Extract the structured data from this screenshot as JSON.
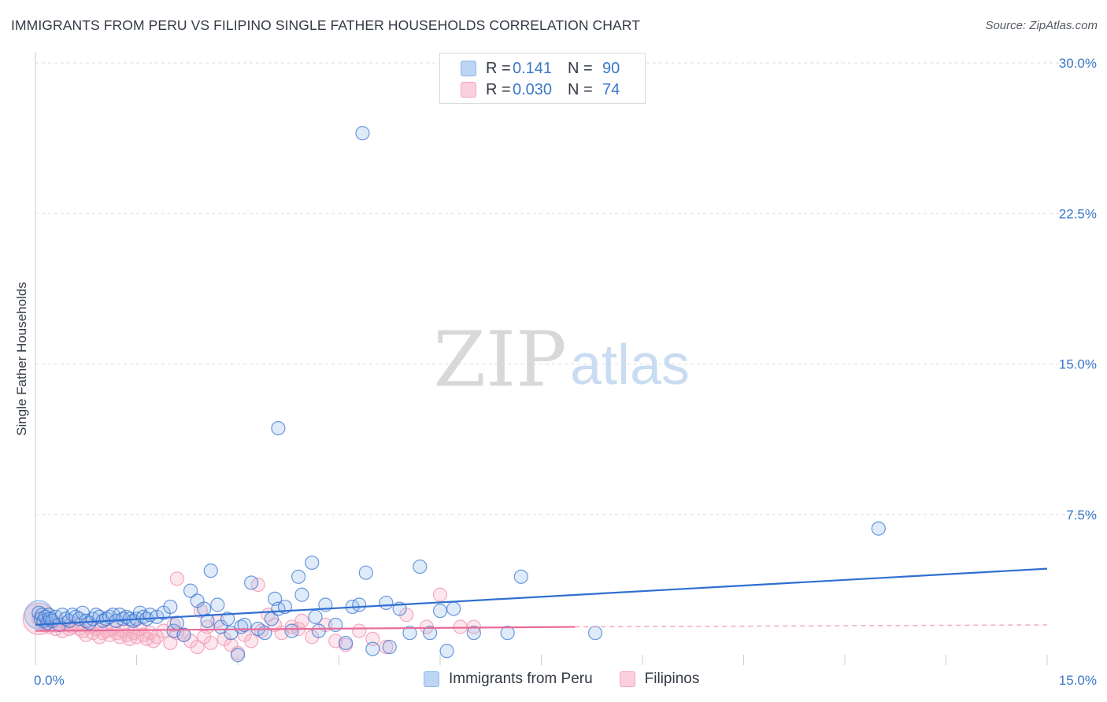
{
  "header": {
    "title": "IMMIGRANTS FROM PERU VS FILIPINO SINGLE FATHER HOUSEHOLDS CORRELATION CHART",
    "source": "Source: ZipAtlas.com"
  },
  "watermark": {
    "zip": "ZIP",
    "atlas": "atlas"
  },
  "colors": {
    "peru": "#8fb8ea",
    "peru_line": "#2f6fd0",
    "filipinos": "#f4a8c0",
    "filipinos_line": "#e86a98",
    "tick_text": "#3a78c8",
    "grid": "#dddddd"
  },
  "legend_top": {
    "rows": [
      {
        "r_label": "R =",
        "r_value": "0.141",
        "n_label": "N =",
        "n_value": "90"
      },
      {
        "r_label": "R =",
        "r_value": "0.030",
        "n_label": "N =",
        "n_value": "74"
      }
    ]
  },
  "legend_bottom": {
    "items": [
      {
        "label": "Immigrants from Peru"
      },
      {
        "label": "Filipinos"
      }
    ]
  },
  "chart_data": {
    "type": "scatter",
    "title": "IMMIGRANTS FROM PERU VS FILIPINO SINGLE FATHER HOUSEHOLDS CORRELATION CHART",
    "xlabel": "",
    "ylabel": "Single Father Households",
    "xlim": [
      0,
      15
    ],
    "ylim": [
      0,
      30
    ],
    "x_ticks": [
      0,
      15
    ],
    "x_tick_labels": [
      "0.0%",
      "15.0%"
    ],
    "y_ticks": [
      7.5,
      15,
      22.5,
      30
    ],
    "y_tick_labels": [
      "7.5%",
      "15.0%",
      "22.5%",
      "30.0%"
    ],
    "grid": true,
    "legend_position": "top-center",
    "series": [
      {
        "name": "Immigrants from Peru",
        "r": 0.141,
        "n": 90,
        "trend": {
          "x": [
            0,
            15
          ],
          "y": [
            2.0,
            4.8
          ]
        },
        "points": [
          [
            0.05,
            2.6
          ],
          [
            0.08,
            2.3
          ],
          [
            0.1,
            2.5
          ],
          [
            0.12,
            2.2
          ],
          [
            0.15,
            2.4
          ],
          [
            0.18,
            2.1
          ],
          [
            0.2,
            2.5
          ],
          [
            0.22,
            2.3
          ],
          [
            0.25,
            2.2
          ],
          [
            0.3,
            2.4
          ],
          [
            0.35,
            2.0
          ],
          [
            0.4,
            2.5
          ],
          [
            0.45,
            2.3
          ],
          [
            0.5,
            2.2
          ],
          [
            0.55,
            2.5
          ],
          [
            0.6,
            2.4
          ],
          [
            0.65,
            2.3
          ],
          [
            0.7,
            2.6
          ],
          [
            0.75,
            2.2
          ],
          [
            0.8,
            2.1
          ],
          [
            0.85,
            2.3
          ],
          [
            0.9,
            2.5
          ],
          [
            0.95,
            2.4
          ],
          [
            1.0,
            2.2
          ],
          [
            1.05,
            2.3
          ],
          [
            1.1,
            2.4
          ],
          [
            1.15,
            2.5
          ],
          [
            1.2,
            2.2
          ],
          [
            1.25,
            2.5
          ],
          [
            1.3,
            2.3
          ],
          [
            1.35,
            2.4
          ],
          [
            1.4,
            2.3
          ],
          [
            1.45,
            2.2
          ],
          [
            1.5,
            2.3
          ],
          [
            1.55,
            2.6
          ],
          [
            1.6,
            2.4
          ],
          [
            1.65,
            2.3
          ],
          [
            1.7,
            2.5
          ],
          [
            1.8,
            2.4
          ],
          [
            1.9,
            2.6
          ],
          [
            2.0,
            2.9
          ],
          [
            2.05,
            1.7
          ],
          [
            2.1,
            2.1
          ],
          [
            2.2,
            1.5
          ],
          [
            2.3,
            3.7
          ],
          [
            2.4,
            3.2
          ],
          [
            2.5,
            2.8
          ],
          [
            2.55,
            2.2
          ],
          [
            2.6,
            4.7
          ],
          [
            2.7,
            3.0
          ],
          [
            2.75,
            1.9
          ],
          [
            2.85,
            2.3
          ],
          [
            2.9,
            1.6
          ],
          [
            3.0,
            0.5
          ],
          [
            3.05,
            1.9
          ],
          [
            3.1,
            2.0
          ],
          [
            3.2,
            4.1
          ],
          [
            3.3,
            1.8
          ],
          [
            3.4,
            1.6
          ],
          [
            3.5,
            2.3
          ],
          [
            3.55,
            3.3
          ],
          [
            3.6,
            2.8
          ],
          [
            3.7,
            2.9
          ],
          [
            3.8,
            1.7
          ],
          [
            3.9,
            4.4
          ],
          [
            3.95,
            3.5
          ],
          [
            4.1,
            5.1
          ],
          [
            4.15,
            2.4
          ],
          [
            4.2,
            1.7
          ],
          [
            4.3,
            3.0
          ],
          [
            4.45,
            2.0
          ],
          [
            4.6,
            1.1
          ],
          [
            4.7,
            2.9
          ],
          [
            4.8,
            3.0
          ],
          [
            4.9,
            4.6
          ],
          [
            5.0,
            0.8
          ],
          [
            5.2,
            3.1
          ],
          [
            5.25,
            0.9
          ],
          [
            5.4,
            2.8
          ],
          [
            5.55,
            1.6
          ],
          [
            5.7,
            4.9
          ],
          [
            5.85,
            1.6
          ],
          [
            6.0,
            2.7
          ],
          [
            6.2,
            2.8
          ],
          [
            6.1,
            0.7
          ],
          [
            6.5,
            1.6
          ],
          [
            7.0,
            1.6
          ],
          [
            7.2,
            4.4
          ],
          [
            8.3,
            1.6
          ],
          [
            12.5,
            6.8
          ],
          [
            4.85,
            26.5
          ],
          [
            3.6,
            11.8
          ]
        ]
      },
      {
        "name": "Filipinos",
        "r": 0.03,
        "n": 74,
        "trend": {
          "x": [
            0,
            8.0
          ],
          "y": [
            1.7,
            1.9
          ]
        },
        "trend_dashed": {
          "x": [
            8.0,
            15
          ],
          "y": [
            1.9,
            2.0
          ]
        },
        "points": [
          [
            0.05,
            2.3
          ],
          [
            0.1,
            2.1
          ],
          [
            0.15,
            2.0
          ],
          [
            0.2,
            1.9
          ],
          [
            0.25,
            2.2
          ],
          [
            0.3,
            1.8
          ],
          [
            0.35,
            2.0
          ],
          [
            0.4,
            1.7
          ],
          [
            0.45,
            2.1
          ],
          [
            0.5,
            1.8
          ],
          [
            0.55,
            1.9
          ],
          [
            0.6,
            2.0
          ],
          [
            0.65,
            1.8
          ],
          [
            0.7,
            1.7
          ],
          [
            0.75,
            1.5
          ],
          [
            0.8,
            1.9
          ],
          [
            0.85,
            1.6
          ],
          [
            0.9,
            1.8
          ],
          [
            0.95,
            1.4
          ],
          [
            1.0,
            1.6
          ],
          [
            1.05,
            1.7
          ],
          [
            1.1,
            1.5
          ],
          [
            1.15,
            1.8
          ],
          [
            1.2,
            1.6
          ],
          [
            1.25,
            1.4
          ],
          [
            1.3,
            1.7
          ],
          [
            1.35,
            1.5
          ],
          [
            1.4,
            1.3
          ],
          [
            1.45,
            1.6
          ],
          [
            1.5,
            1.4
          ],
          [
            1.55,
            1.8
          ],
          [
            1.6,
            1.5
          ],
          [
            1.65,
            1.3
          ],
          [
            1.7,
            1.6
          ],
          [
            1.75,
            1.2
          ],
          [
            1.8,
            1.4
          ],
          [
            1.9,
            1.7
          ],
          [
            2.0,
            1.1
          ],
          [
            2.05,
            2.0
          ],
          [
            2.1,
            1.6
          ],
          [
            2.2,
            1.5
          ],
          [
            2.3,
            1.2
          ],
          [
            2.4,
            0.9
          ],
          [
            2.5,
            1.4
          ],
          [
            2.6,
            1.1
          ],
          [
            2.7,
            2.2
          ],
          [
            2.8,
            1.3
          ],
          [
            2.9,
            1.0
          ],
          [
            3.0,
            0.6
          ],
          [
            3.1,
            1.5
          ],
          [
            3.2,
            1.2
          ],
          [
            3.35,
            1.7
          ],
          [
            3.45,
            2.5
          ],
          [
            3.55,
            2.0
          ],
          [
            3.65,
            1.6
          ],
          [
            3.8,
            1.9
          ],
          [
            3.95,
            2.2
          ],
          [
            4.1,
            1.4
          ],
          [
            4.3,
            2.0
          ],
          [
            4.45,
            1.2
          ],
          [
            4.6,
            1.0
          ],
          [
            4.8,
            1.7
          ],
          [
            5.0,
            1.3
          ],
          [
            5.2,
            0.9
          ],
          [
            5.5,
            2.5
          ],
          [
            5.8,
            1.9
          ],
          [
            6.0,
            3.5
          ],
          [
            6.3,
            1.9
          ],
          [
            2.1,
            4.3
          ],
          [
            2.45,
            2.7
          ],
          [
            3.3,
            4.0
          ],
          [
            2.55,
            1.9
          ],
          [
            3.9,
            1.8
          ],
          [
            6.5,
            1.9
          ]
        ]
      }
    ]
  }
}
